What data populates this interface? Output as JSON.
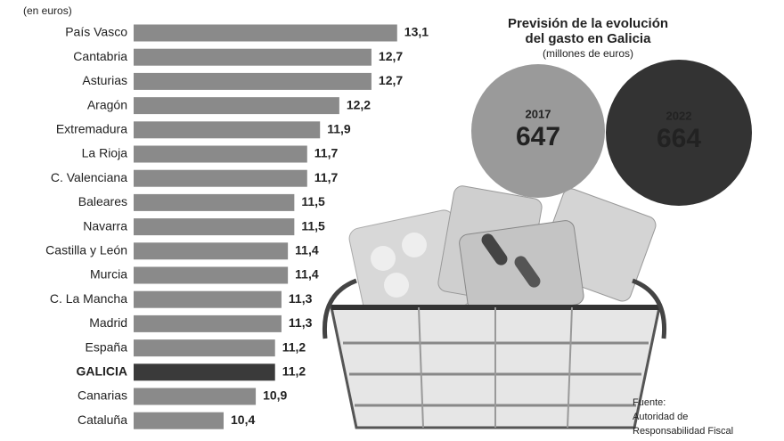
{
  "chart_data": {
    "type": "bar",
    "orientation": "horizontal",
    "subtitle": "(en euros)",
    "categories": [
      "País Vasco",
      "Cantabria",
      "Asturias",
      "Aragón",
      "Extremadura",
      "La Rioja",
      "C. Valenciana",
      "Baleares",
      "Navarra",
      "Castilla y León",
      "Murcia",
      "C. La Mancha",
      "Madrid",
      "España",
      "GALICIA",
      "Canarias",
      "Cataluña"
    ],
    "values": [
      13.1,
      12.7,
      12.7,
      12.2,
      11.9,
      11.7,
      11.7,
      11.5,
      11.5,
      11.4,
      11.4,
      11.3,
      11.3,
      11.2,
      11.2,
      10.9,
      10.4
    ],
    "value_labels": [
      "13,1",
      "12,7",
      "12,7",
      "12,2",
      "11,9",
      "11,7",
      "11,7",
      "11,5",
      "11,5",
      "11,4",
      "11,4",
      "11,3",
      "11,3",
      "11,2",
      "11,2",
      "10,9",
      "10,4"
    ],
    "color": "#8a8a8a",
    "highlight": {
      "category": "GALICIA",
      "color": "#3a3a3a"
    },
    "xlim": [
      9,
      13.2
    ]
  },
  "forecast": {
    "title": [
      "Previsión de la evolución",
      "del gasto en Galicia"
    ],
    "subtitle": "(millones de euros)",
    "items": [
      {
        "year": "2017",
        "value": 647,
        "color": "#9a9a9a"
      },
      {
        "year": "2022",
        "value": 664,
        "color": "#333333"
      }
    ]
  },
  "source": [
    "Fuente:",
    "Autoridad de",
    "Responsabilidad Fiscal"
  ]
}
